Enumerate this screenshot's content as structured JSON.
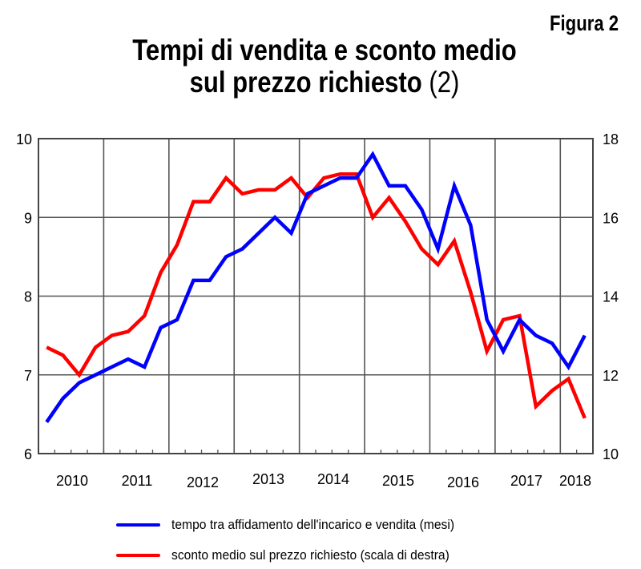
{
  "header": {
    "figure_label": "Figura 2",
    "title_line1": "Tempi di vendita e sconto medio",
    "title_line2": "sul prezzo richiesto",
    "title_suffix": "(2)"
  },
  "colors": {
    "series_blue": "#0000ff",
    "series_red": "#ff0000",
    "grid": "#555555"
  },
  "chart_data": {
    "type": "line",
    "title": "Tempi di vendita e sconto medio sul prezzo richiesto (2)",
    "xlabel": "",
    "ylabel_left": "",
    "ylabel_right": "",
    "x": [
      "2010Q1",
      "2010Q2",
      "2010Q3",
      "2010Q4",
      "2011Q1",
      "2011Q2",
      "2011Q3",
      "2011Q4",
      "2012Q1",
      "2012Q2",
      "2012Q3",
      "2012Q4",
      "2013Q1",
      "2013Q2",
      "2013Q3",
      "2013Q4",
      "2014Q1",
      "2014Q2",
      "2014Q3",
      "2014Q4",
      "2015Q1",
      "2015Q2",
      "2015Q3",
      "2015Q4",
      "2016Q1",
      "2016Q2",
      "2016Q3",
      "2016Q4",
      "2017Q1",
      "2017Q2",
      "2017Q3",
      "2017Q4",
      "2018Q1",
      "2018Q2"
    ],
    "x_tick_labels": [
      "2010",
      "2011",
      "2012",
      "2013",
      "2014",
      "2015",
      "2016",
      "2017",
      "2018"
    ],
    "y_left": {
      "range": [
        6,
        10
      ],
      "ticks": [
        "6",
        "7",
        "8",
        "9",
        "10"
      ]
    },
    "y_right": {
      "range": [
        10,
        18
      ],
      "ticks": [
        "10",
        "12",
        "14",
        "16",
        "18"
      ]
    },
    "grid": true,
    "legend_position": "bottom",
    "series": [
      {
        "name": "tempo tra affidamento dell'incarico e vendita (mesi)",
        "axis": "left",
        "color": "#0000ff",
        "values": [
          6.4,
          6.7,
          6.9,
          7.0,
          7.1,
          7.2,
          7.1,
          7.6,
          7.7,
          8.2,
          8.2,
          8.5,
          8.6,
          8.8,
          9.0,
          8.8,
          9.3,
          9.4,
          9.5,
          9.5,
          9.8,
          9.4,
          9.4,
          9.1,
          8.6,
          9.4,
          8.9,
          7.7,
          7.3,
          7.7,
          7.5,
          7.4,
          7.1,
          7.5
        ]
      },
      {
        "name": "sconto medio sul prezzo richiesto (scala di destra)",
        "axis": "right",
        "color": "#ff0000",
        "values": [
          12.7,
          12.5,
          12.0,
          12.7,
          13.0,
          13.1,
          13.5,
          14.6,
          15.3,
          16.4,
          16.4,
          17.0,
          16.6,
          16.7,
          16.7,
          17.0,
          16.5,
          17.0,
          17.1,
          17.1,
          16.0,
          16.5,
          15.9,
          15.2,
          14.8,
          15.4,
          14.1,
          12.6,
          13.4,
          13.5,
          11.2,
          11.6,
          11.9,
          10.9
        ]
      }
    ]
  },
  "legend": {
    "items": [
      {
        "label": "tempo tra affidamento dell'incarico e vendita (mesi)",
        "color": "#0000ff"
      },
      {
        "label": "sconto medio sul prezzo richiesto (scala di destra)",
        "color": "#ff0000"
      }
    ]
  }
}
